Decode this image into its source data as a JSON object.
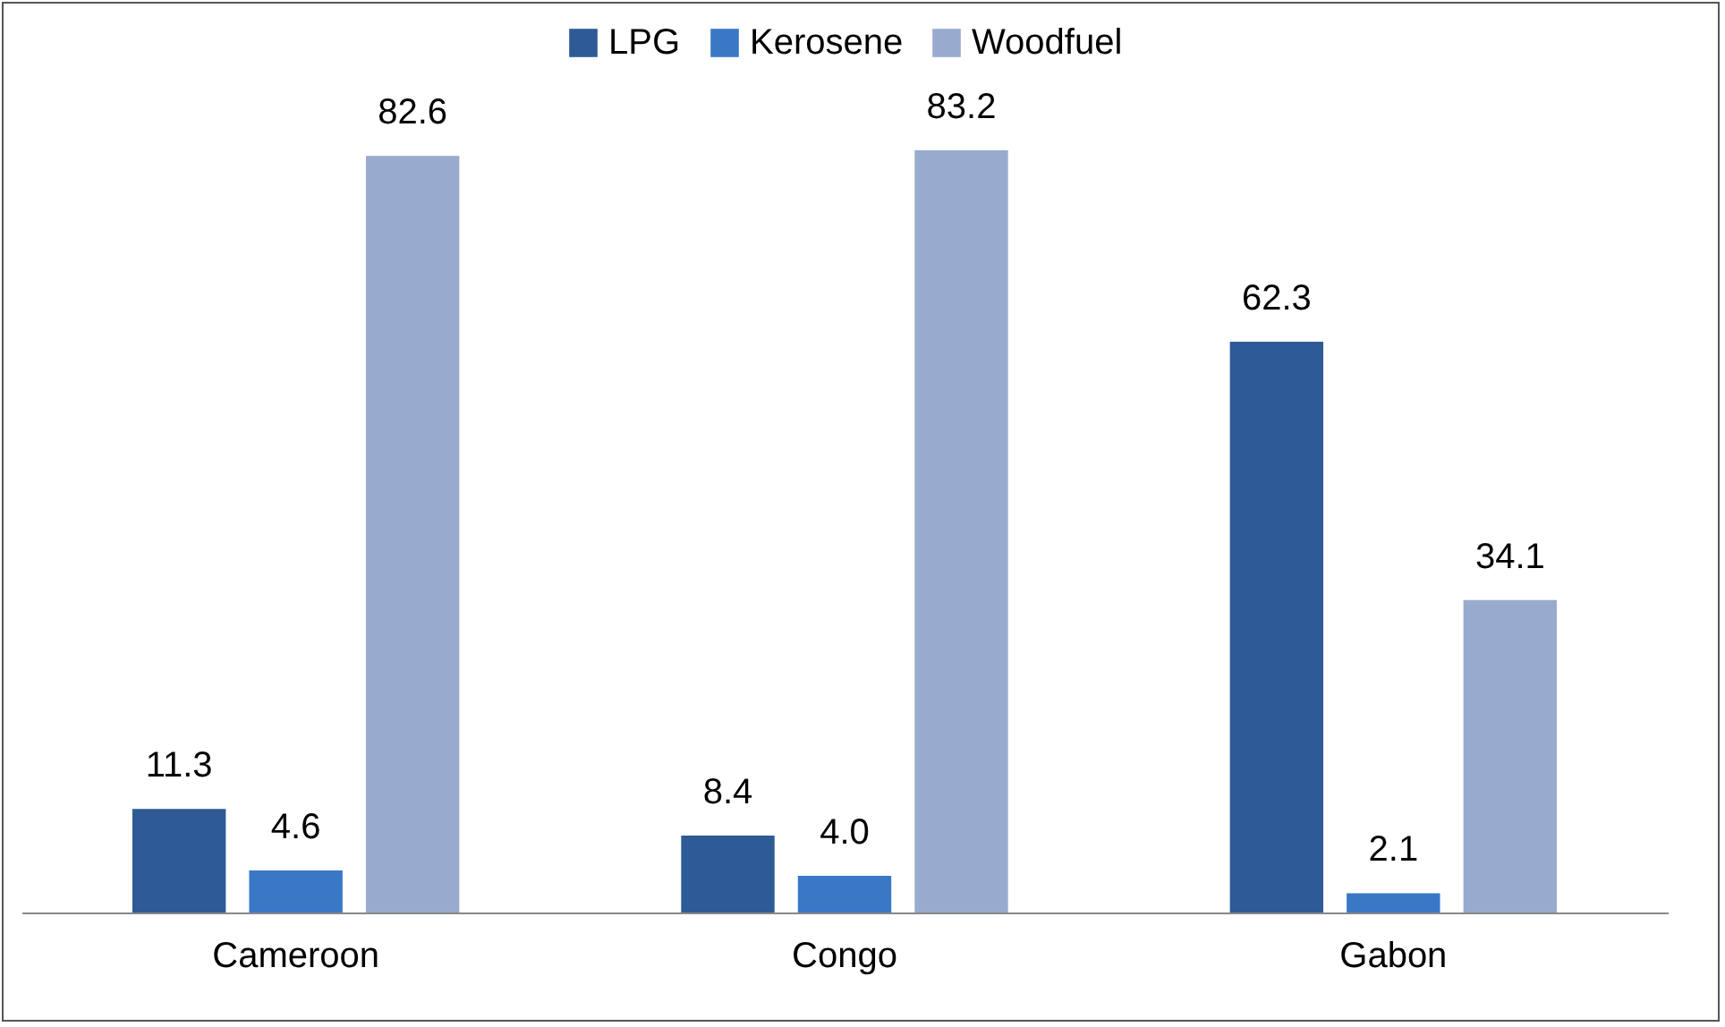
{
  "chart_data": {
    "type": "bar",
    "categories": [
      "Cameroon",
      "Congo",
      "Gabon"
    ],
    "series": [
      {
        "name": "LPG",
        "color": "#2e5b96",
        "values": [
          11.3,
          8.4,
          62.3
        ],
        "value_labels": [
          "11.3",
          "8.4",
          "62.3"
        ]
      },
      {
        "name": "Kerosene",
        "color": "#3a78c6",
        "values": [
          4.6,
          4.0,
          2.1
        ],
        "value_labels": [
          "4.6",
          "4.0",
          "2.1"
        ]
      },
      {
        "name": "Woodfuel",
        "color": "#98abcf",
        "values": [
          82.6,
          83.2,
          34.1
        ],
        "value_labels": [
          "82.6",
          "83.2",
          "34.1"
        ]
      }
    ],
    "legend": "top",
    "grid": false
  }
}
